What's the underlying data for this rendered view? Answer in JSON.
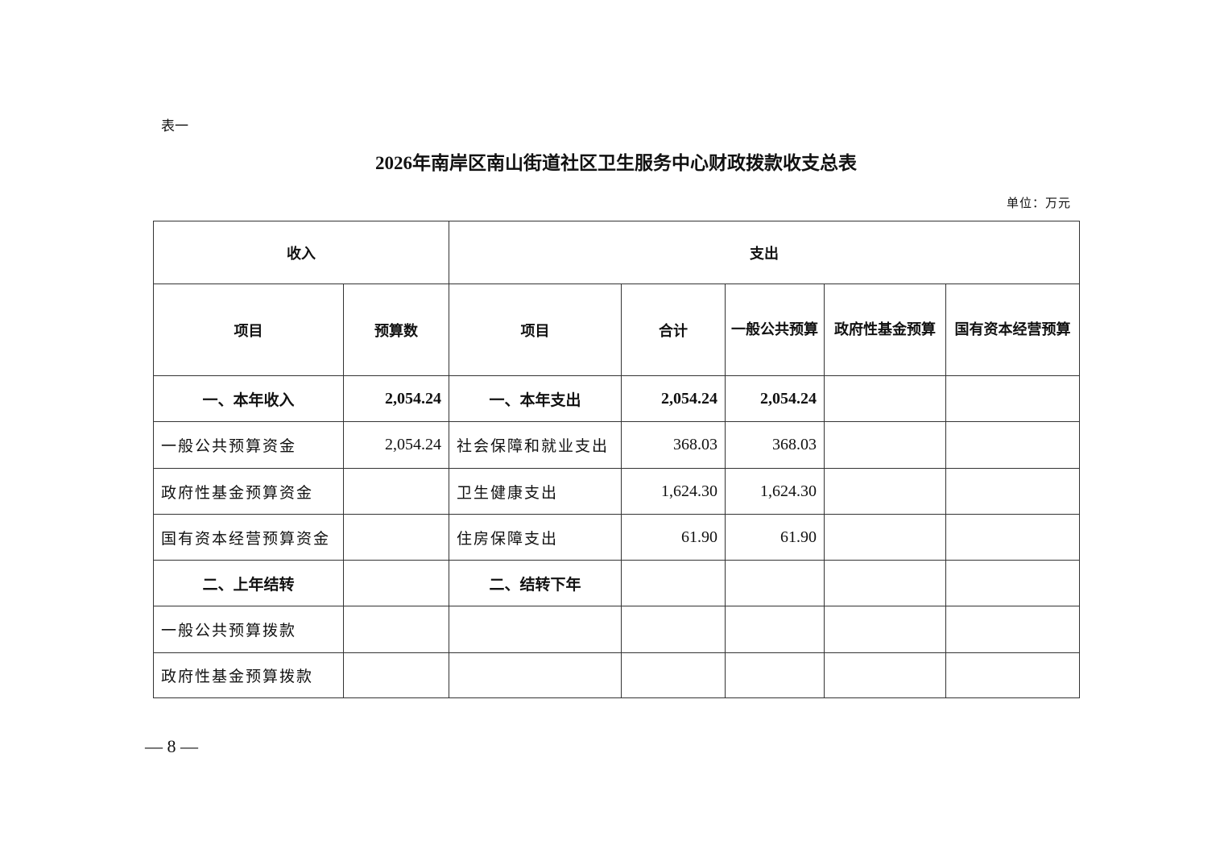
{
  "table_label": "表一",
  "title": "2026年南岸区南山街道社区卫生服务中心财政拨款收支总表",
  "unit": "单位：万元",
  "header": {
    "income": "收入",
    "expense": "支出",
    "columns": [
      "项目",
      "预算数",
      "项目",
      "合计",
      "一般公共预算",
      "政府性基金预算",
      "国有资本经营预算"
    ]
  },
  "rows": [
    {
      "type": "section",
      "cells": [
        "一、本年收入",
        "2,054.24",
        "一、本年支出",
        "2,054.24",
        "2,054.24",
        "",
        ""
      ]
    },
    {
      "type": "item",
      "cells": [
        "一般公共预算资金",
        "2,054.24",
        "社会保障和就业支出",
        "368.03",
        "368.03",
        "",
        ""
      ]
    },
    {
      "type": "item",
      "cells": [
        "政府性基金预算资金",
        "",
        "卫生健康支出",
        "1,624.30",
        "1,624.30",
        "",
        ""
      ]
    },
    {
      "type": "item",
      "cells": [
        "国有资本经营预算资金",
        "",
        "住房保障支出",
        "61.90",
        "61.90",
        "",
        ""
      ]
    },
    {
      "type": "section",
      "cells": [
        "二、上年结转",
        "",
        "二、结转下年",
        "",
        "",
        "",
        ""
      ]
    },
    {
      "type": "item",
      "cells": [
        "一般公共预算拨款",
        "",
        "",
        "",
        "",
        "",
        ""
      ]
    },
    {
      "type": "item",
      "cells": [
        "政府性基金预算拨款",
        "",
        "",
        "",
        "",
        "",
        ""
      ]
    }
  ],
  "page_number": "— 8 —"
}
